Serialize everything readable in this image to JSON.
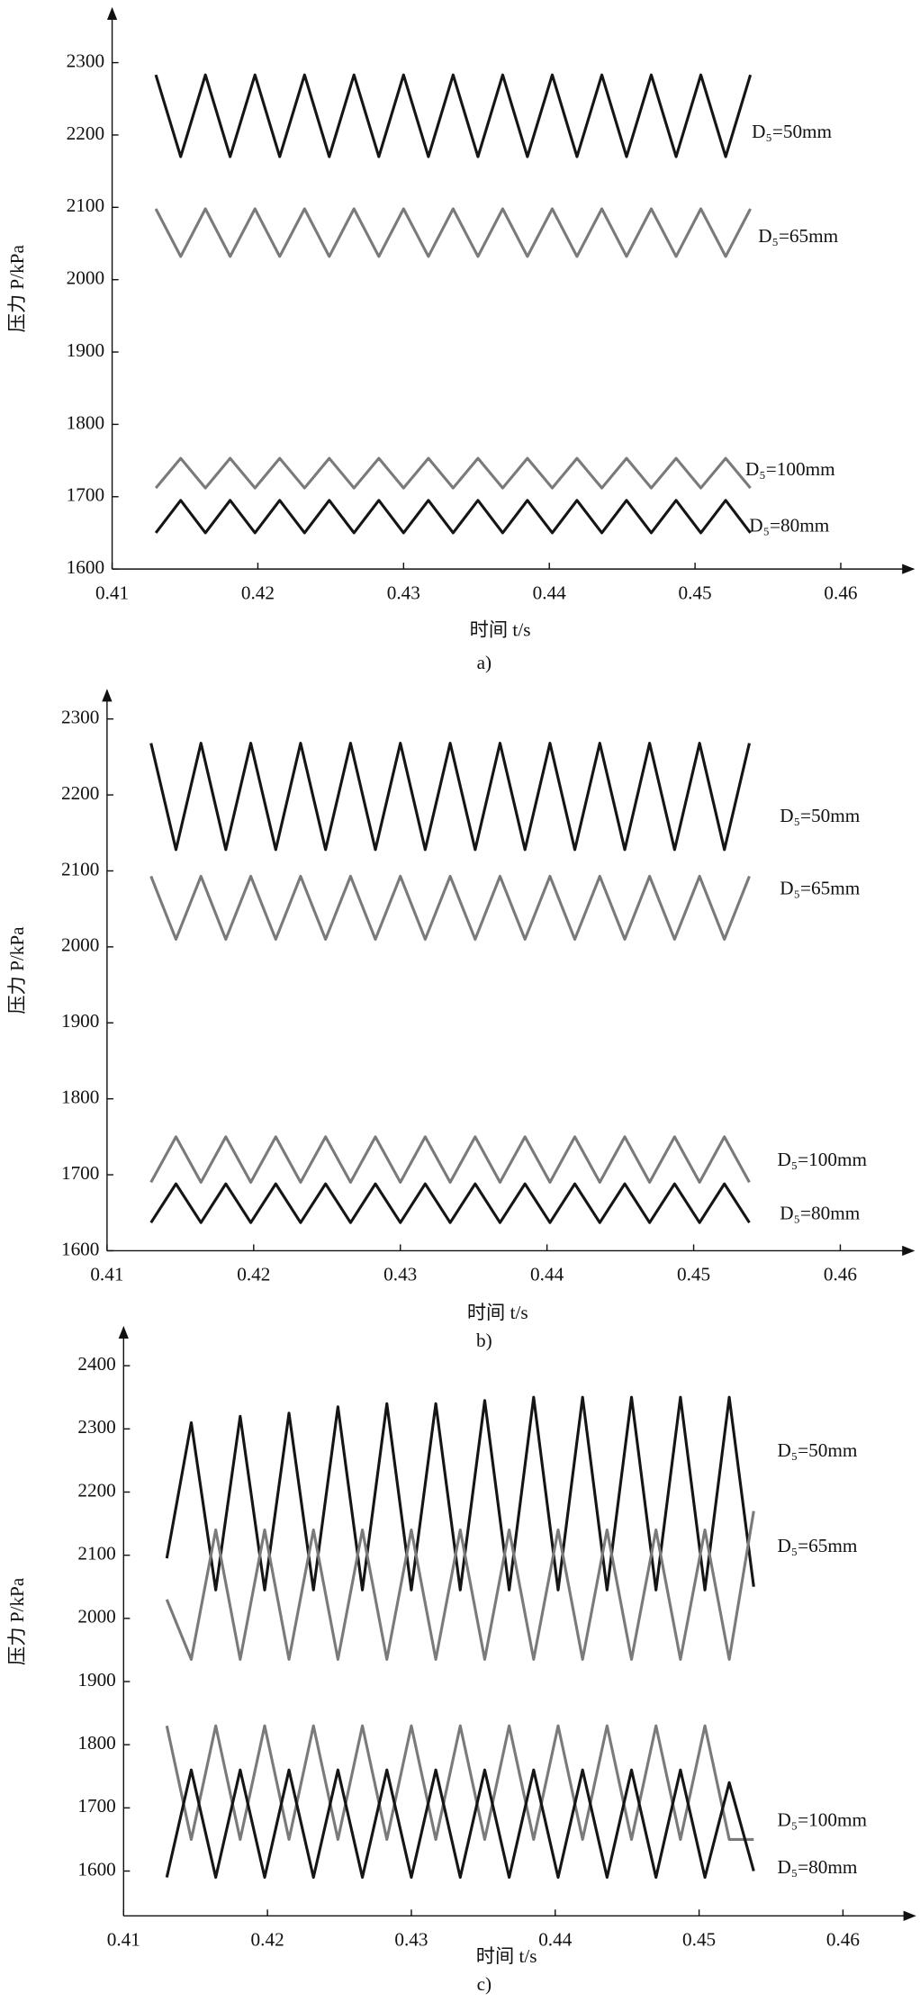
{
  "chart_data": [
    {
      "type": "line",
      "caption": "a)",
      "xlabel": "时间 t/s",
      "ylabel": "压力 P/kPa",
      "xlim": [
        0.41,
        0.465
      ],
      "ylim": [
        1600,
        2375
      ],
      "xticks": [
        0.41,
        0.42,
        0.43,
        0.44,
        0.45,
        0.46
      ],
      "yticks": [
        1600,
        1700,
        1800,
        1900,
        2000,
        2100,
        2200,
        2300
      ],
      "x": [
        0.413,
        0.4147,
        0.4164,
        0.4181,
        0.4198,
        0.4215,
        0.4232,
        0.4249,
        0.4266,
        0.4283,
        0.43,
        0.4317,
        0.4334,
        0.4351,
        0.4368,
        0.4385,
        0.4402,
        0.4419,
        0.4436,
        0.4453,
        0.447,
        0.4487,
        0.4504,
        0.4521,
        0.4538
      ],
      "series": [
        {
          "name": "D₅=50mm",
          "color": "#151515",
          "values": [
            2283,
            2170,
            2283,
            2170,
            2283,
            2170,
            2283,
            2170,
            2283,
            2170,
            2283,
            2170,
            2283,
            2170,
            2283,
            2170,
            2283,
            2170,
            2283,
            2170,
            2283,
            2170,
            2283,
            2170,
            2283
          ]
        },
        {
          "name": "D₅=65mm",
          "color": "#7a7a7a",
          "values": [
            2098,
            2032,
            2098,
            2032,
            2098,
            2032,
            2098,
            2032,
            2098,
            2032,
            2098,
            2032,
            2098,
            2032,
            2098,
            2032,
            2098,
            2032,
            2098,
            2032,
            2098,
            2032,
            2098,
            2032,
            2098
          ]
        },
        {
          "name": "D₅=100mm",
          "color": "#7a7a7a",
          "values": [
            1712,
            1753,
            1712,
            1753,
            1712,
            1753,
            1712,
            1753,
            1712,
            1753,
            1712,
            1753,
            1712,
            1753,
            1712,
            1753,
            1712,
            1753,
            1712,
            1753,
            1712,
            1753,
            1712,
            1753,
            1712
          ]
        },
        {
          "name": "D₅=80mm",
          "color": "#151515",
          "values": [
            1650,
            1695,
            1650,
            1695,
            1650,
            1695,
            1650,
            1695,
            1650,
            1695,
            1650,
            1695,
            1650,
            1695,
            1650,
            1695,
            1650,
            1695,
            1650,
            1695,
            1650,
            1695,
            1650,
            1695,
            1650
          ]
        }
      ]
    },
    {
      "type": "line",
      "caption": "b)",
      "xlabel": "时间 t/s",
      "ylabel": "压力 P/kPa",
      "xlim": [
        0.41,
        0.465
      ],
      "ylim": [
        1600,
        2338
      ],
      "xticks": [
        0.41,
        0.42,
        0.43,
        0.44,
        0.45,
        0.46
      ],
      "yticks": [
        1600,
        1700,
        1800,
        1900,
        2000,
        2100,
        2200,
        2300
      ],
      "x": [
        0.413,
        0.4147,
        0.4164,
        0.4181,
        0.4198,
        0.4215,
        0.4232,
        0.4249,
        0.4266,
        0.4283,
        0.43,
        0.4317,
        0.4334,
        0.4351,
        0.4368,
        0.4385,
        0.4402,
        0.4419,
        0.4436,
        0.4453,
        0.447,
        0.4487,
        0.4504,
        0.4521,
        0.4538
      ],
      "series": [
        {
          "name": "D₅=50mm",
          "color": "#151515",
          "values": [
            2268,
            2128,
            2268,
            2128,
            2268,
            2128,
            2268,
            2128,
            2268,
            2128,
            2268,
            2128,
            2268,
            2128,
            2268,
            2128,
            2268,
            2128,
            2268,
            2128,
            2268,
            2128,
            2268,
            2128,
            2268
          ]
        },
        {
          "name": "D₅=65mm",
          "color": "#7a7a7a",
          "values": [
            2093,
            2010,
            2093,
            2010,
            2093,
            2010,
            2093,
            2010,
            2093,
            2010,
            2093,
            2010,
            2093,
            2010,
            2093,
            2010,
            2093,
            2010,
            2093,
            2010,
            2093,
            2010,
            2093,
            2010,
            2093
          ]
        },
        {
          "name": "D₅=100mm",
          "color": "#7a7a7a",
          "values": [
            1690,
            1750,
            1690,
            1750,
            1690,
            1750,
            1690,
            1750,
            1690,
            1750,
            1690,
            1750,
            1690,
            1750,
            1690,
            1750,
            1690,
            1750,
            1690,
            1750,
            1690,
            1750,
            1690,
            1750,
            1690
          ]
        },
        {
          "name": "D₅=80mm",
          "color": "#151515",
          "values": [
            1637,
            1688,
            1637,
            1688,
            1637,
            1688,
            1637,
            1688,
            1637,
            1688,
            1637,
            1688,
            1637,
            1688,
            1637,
            1688,
            1637,
            1688,
            1637,
            1688,
            1637,
            1688,
            1637,
            1688,
            1637
          ]
        }
      ]
    },
    {
      "type": "line",
      "caption": "c)",
      "xlabel": "时间 t/s",
      "ylabel": "压力 P/kPa",
      "xlim": [
        0.41,
        0.465
      ],
      "ylim": [
        1529,
        2461
      ],
      "xticks": [
        0.41,
        0.42,
        0.43,
        0.44,
        0.45,
        0.46
      ],
      "yticks": [
        1600,
        1700,
        1800,
        1900,
        2000,
        2100,
        2200,
        2300,
        2400
      ],
      "x": [
        0.413,
        0.4147,
        0.4164,
        0.4181,
        0.4198,
        0.4215,
        0.4232,
        0.4249,
        0.4266,
        0.4283,
        0.43,
        0.4317,
        0.4334,
        0.4351,
        0.4368,
        0.4385,
        0.4402,
        0.4419,
        0.4436,
        0.4453,
        0.447,
        0.4487,
        0.4504,
        0.4521,
        0.4538
      ],
      "series": [
        {
          "name": "D₅=50mm",
          "color": "#151515",
          "values": [
            2095,
            2310,
            2045,
            2320,
            2045,
            2325,
            2045,
            2335,
            2045,
            2340,
            2045,
            2340,
            2045,
            2345,
            2045,
            2350,
            2045,
            2350,
            2045,
            2350,
            2045,
            2350,
            2045,
            2350,
            2050
          ]
        },
        {
          "name": "D₅=65mm",
          "color": "#7a7a7a",
          "values": [
            2030,
            1935,
            2140,
            1935,
            2140,
            1935,
            2140,
            1935,
            2140,
            1935,
            2140,
            1935,
            2140,
            1935,
            2140,
            1935,
            2140,
            1935,
            2140,
            1935,
            2140,
            1935,
            2140,
            1935,
            2170
          ]
        },
        {
          "name": "D₅=100mm",
          "color": "#7a7a7a",
          "values": [
            1830,
            1650,
            1830,
            1650,
            1830,
            1650,
            1830,
            1650,
            1830,
            1650,
            1830,
            1650,
            1830,
            1650,
            1830,
            1650,
            1830,
            1650,
            1830,
            1650,
            1830,
            1650,
            1830,
            1650,
            1650
          ]
        },
        {
          "name": "D₅=80mm",
          "color": "#151515",
          "values": [
            1590,
            1760,
            1590,
            1760,
            1590,
            1760,
            1590,
            1760,
            1590,
            1760,
            1590,
            1760,
            1590,
            1760,
            1590,
            1760,
            1590,
            1760,
            1590,
            1760,
            1590,
            1760,
            1590,
            1740,
            1600
          ]
        }
      ]
    }
  ]
}
